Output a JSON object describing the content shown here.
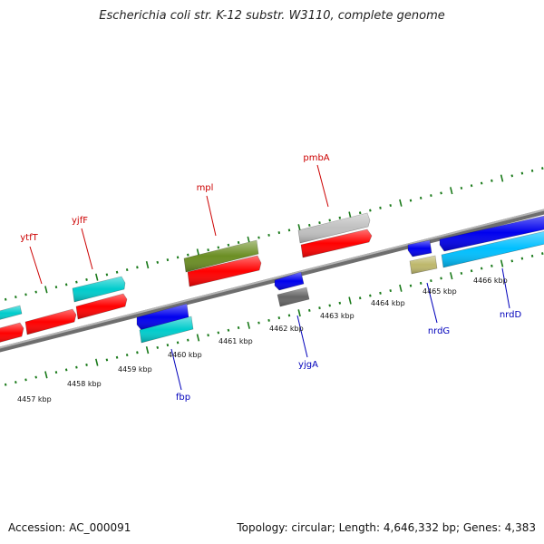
{
  "title": "Escherichia coli str. K-12 substr. W3110, complete genome",
  "footer": {
    "accession": "Accession: AC_000091",
    "summary": "Topology: circular; Length: 4,646,332 bp; Genes: 4,383"
  },
  "colors": {
    "backbone": "#888888",
    "forward_label": "#cc0000",
    "reverse_label": "#0000bb",
    "tick": "#1a7a1a",
    "kbp_label": "#111111"
  },
  "scale": {
    "unit": "kbp",
    "labels": [
      {
        "kbp": 4457,
        "text": "4457 kbp"
      },
      {
        "kbp": 4458,
        "text": "4458 kbp"
      },
      {
        "kbp": 4459,
        "text": "4459 kbp"
      },
      {
        "kbp": 4460,
        "text": "4460 kbp"
      },
      {
        "kbp": 4461,
        "text": "4461 kbp"
      },
      {
        "kbp": 4462,
        "text": "4462 kbp"
      },
      {
        "kbp": 4463,
        "text": "4463 kbp"
      },
      {
        "kbp": 4464,
        "text": "4464 kbp"
      },
      {
        "kbp": 4465,
        "text": "4465 kbp"
      },
      {
        "kbp": 4466,
        "text": "4466 kbp"
      }
    ]
  },
  "gene_labels": [
    {
      "name": "ytfT",
      "strand": "forward"
    },
    {
      "name": "yjfF",
      "strand": "forward"
    },
    {
      "name": "mpl",
      "strand": "forward"
    },
    {
      "name": "pmbA",
      "strand": "forward"
    },
    {
      "name": "fbp",
      "strand": "reverse"
    },
    {
      "name": "yjgA",
      "strand": "reverse"
    },
    {
      "name": "nrdG",
      "strand": "reverse"
    },
    {
      "name": "nrdD",
      "strand": "reverse"
    }
  ],
  "features": [
    {
      "id": "f1",
      "color": "#00cccc",
      "track": "outer"
    },
    {
      "id": "f2",
      "color": "#ff0000",
      "track": "inner"
    },
    {
      "id": "f3",
      "color": "#ff0000",
      "track": "inner"
    },
    {
      "id": "f4",
      "color": "#00cccc",
      "track": "outer"
    },
    {
      "id": "f5",
      "color": "#ff0000",
      "track": "inner"
    },
    {
      "id": "f6",
      "color": "#6b8e23",
      "track": "outer"
    },
    {
      "id": "f7",
      "color": "#ff0000",
      "track": "inner"
    },
    {
      "id": "f8",
      "color": "#c0c0c0",
      "track": "outer"
    },
    {
      "id": "f9",
      "color": "#ff0000",
      "track": "inner"
    },
    {
      "id": "f10",
      "color": "#0000ee",
      "track": "rev-inner"
    },
    {
      "id": "f11",
      "color": "#00cccc",
      "track": "rev-outer"
    },
    {
      "id": "f12",
      "color": "#0000ee",
      "track": "rev-inner"
    },
    {
      "id": "f13",
      "color": "#666666",
      "track": "rev-outer"
    },
    {
      "id": "f14",
      "color": "#0000ee",
      "track": "rev-inner"
    },
    {
      "id": "f15",
      "color": "#bdb76b",
      "track": "rev-outer"
    },
    {
      "id": "f16",
      "color": "#0000ee",
      "track": "rev-inner"
    },
    {
      "id": "f17",
      "color": "#00bfff",
      "track": "rev-outer"
    }
  ]
}
